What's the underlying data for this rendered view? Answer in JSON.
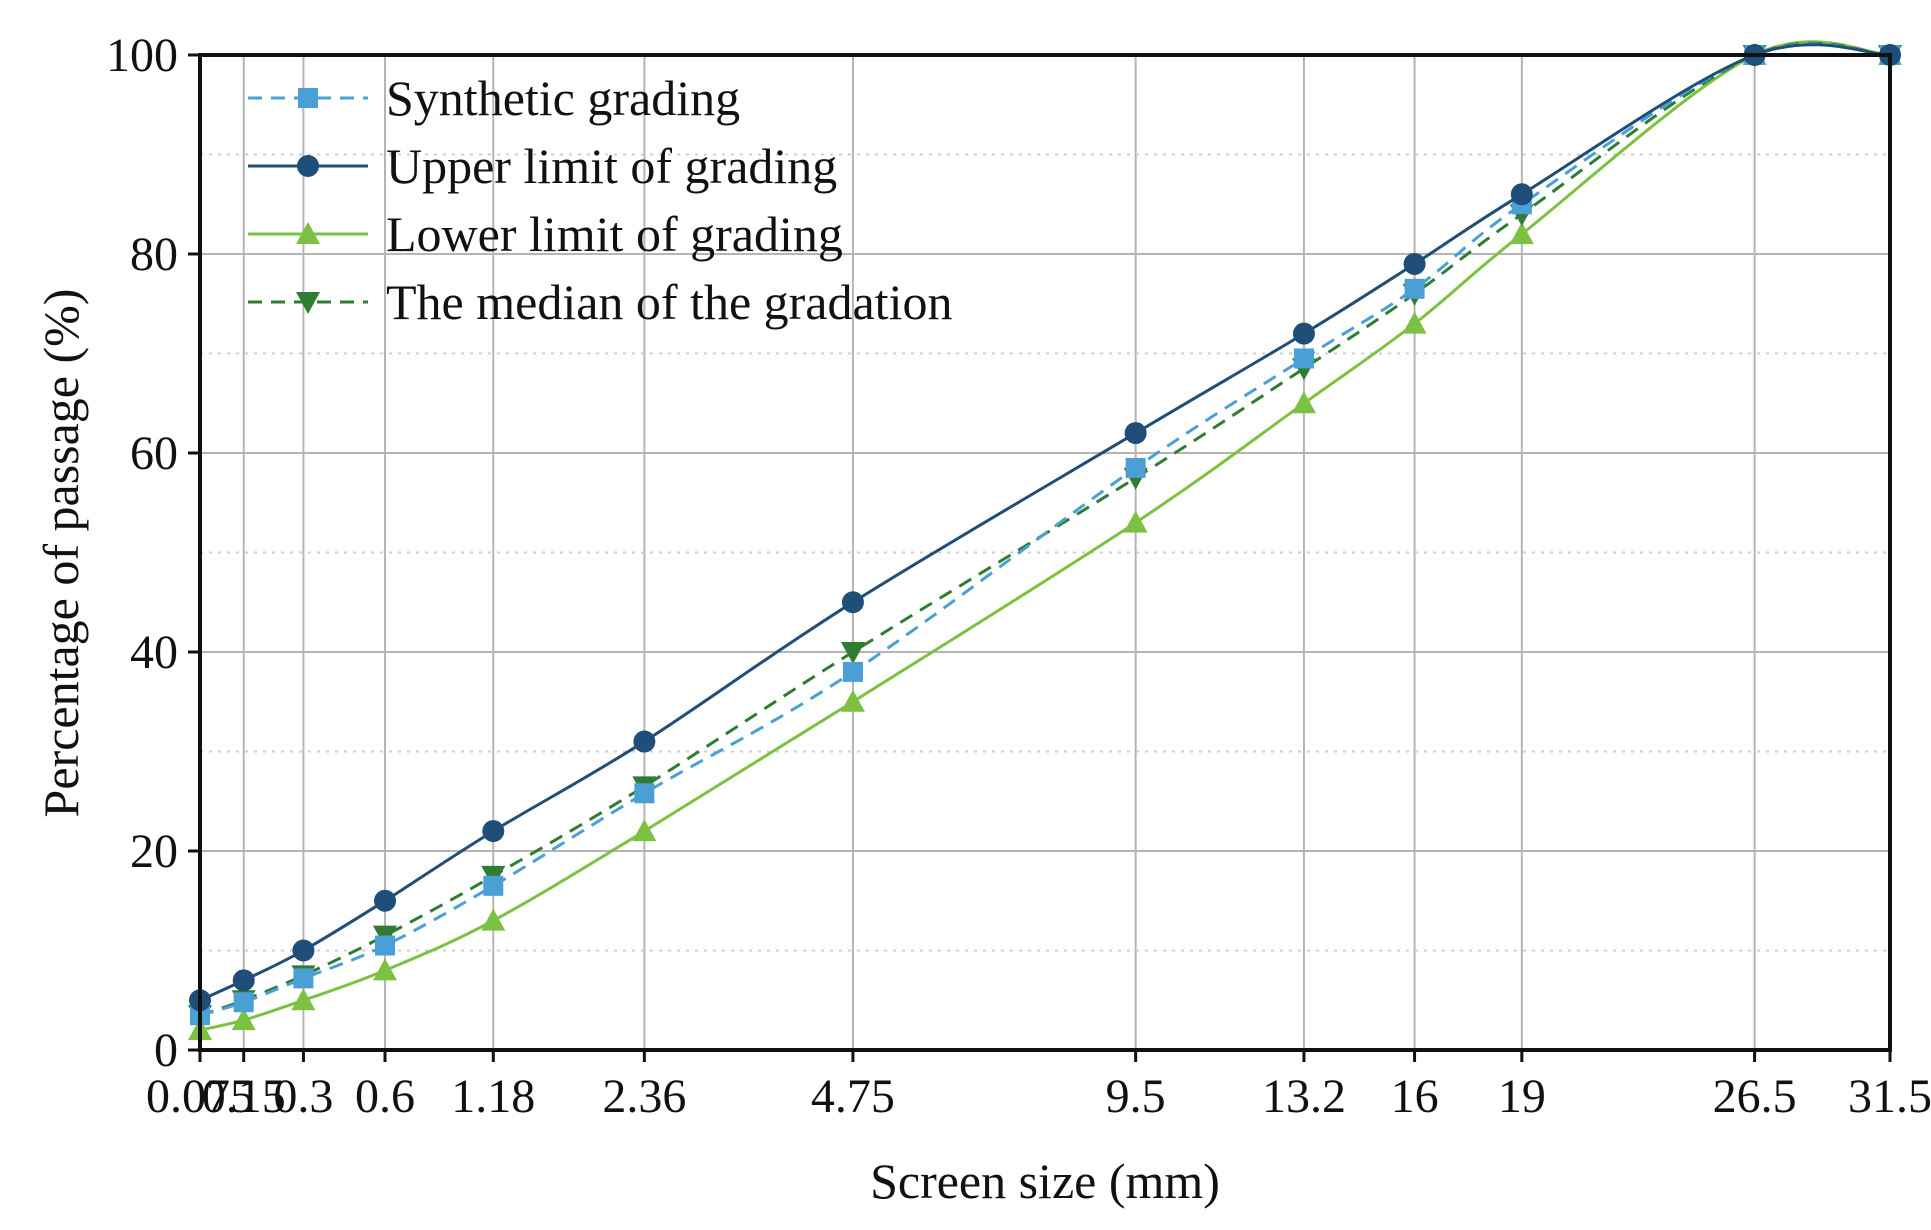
{
  "chart_data": {
    "type": "line",
    "title": "",
    "xlabel": "Screen size (mm)",
    "ylabel": "Percentage of passage (%)",
    "xscale": "power-0.45",
    "xlim": [
      0.075,
      31.5
    ],
    "ylim": [
      0,
      100
    ],
    "x": [
      0.075,
      0.15,
      0.3,
      0.6,
      1.18,
      2.36,
      4.75,
      9.5,
      13.2,
      16,
      19,
      26.5,
      31.5
    ],
    "x_tick_labels": [
      "0.075",
      "0.15",
      "0.3",
      "0.6",
      "1.18",
      "2.36",
      "4.75",
      "9.5",
      "13.2",
      "16",
      "19",
      "26.5",
      "31.5"
    ],
    "y_ticks": [
      0,
      20,
      40,
      60,
      80,
      100
    ],
    "y_tick_labels": [
      "0",
      "20",
      "40",
      "60",
      "80",
      "100"
    ],
    "grid": true,
    "legend_position": "top-left",
    "series": [
      {
        "name": "Synthetic grading",
        "color": "#4a9fd4",
        "line_style": "dashed",
        "marker": "square",
        "values": [
          3.5,
          4.8,
          7.2,
          10.5,
          16.5,
          25.8,
          38,
          58.5,
          69.5,
          76.5,
          85,
          100,
          100
        ]
      },
      {
        "name": "Upper limit of grading",
        "color": "#1f4e79",
        "line_style": "solid",
        "marker": "circle",
        "values": [
          5,
          7,
          10,
          15,
          22,
          31,
          45,
          62,
          72,
          79,
          86,
          100,
          100
        ]
      },
      {
        "name": "Lower limit of grading",
        "color": "#7dc142",
        "line_style": "solid",
        "marker": "triangle-up",
        "values": [
          2,
          3,
          5,
          8,
          13,
          22,
          35,
          53,
          65,
          73,
          82,
          100,
          100
        ]
      },
      {
        "name": "The median of the gradation",
        "color": "#2e7d32",
        "line_style": "dashed",
        "marker": "triangle-down",
        "values": [
          3.5,
          5,
          7.5,
          11.5,
          17.5,
          26.5,
          40,
          57.5,
          68.5,
          76,
          84,
          100,
          100
        ]
      }
    ]
  }
}
